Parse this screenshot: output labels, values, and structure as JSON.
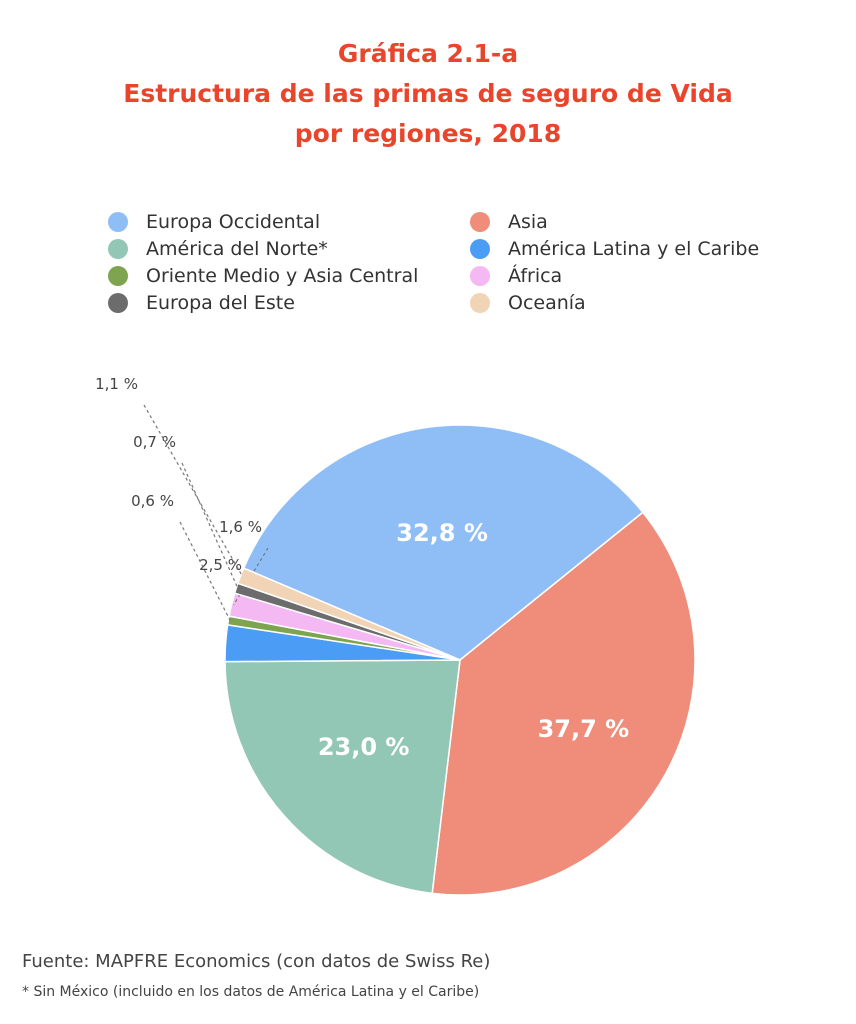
{
  "chart_data": {
    "type": "pie",
    "title_lines": [
      "Gráfica 2.1-a",
      "Estructura de las primas de seguro de Vida",
      "por regiones, 2018"
    ],
    "slices": [
      {
        "name": "Europa Occidental",
        "value": 32.8,
        "label": "32,8 %",
        "color": "#8fbef7"
      },
      {
        "name": "Asia",
        "value": 37.7,
        "label": "37,7 %",
        "color": "#ef8c7a"
      },
      {
        "name": "América del Norte*",
        "value": 23.0,
        "label": "23,0 %",
        "color": "#93c7b5"
      },
      {
        "name": "América Latina y el Caribe",
        "value": 2.5,
        "label": "2,5 %",
        "color": "#4b9cf4"
      },
      {
        "name": "Oriente Medio y Asia Central",
        "value": 0.6,
        "label": "0,6 %",
        "color": "#7ea450"
      },
      {
        "name": "África",
        "value": 1.6,
        "label": "1,6 %",
        "color": "#f4b8f3"
      },
      {
        "name": "Europa del Este",
        "value": 0.7,
        "label": "0,7 %",
        "color": "#6c6c6c"
      },
      {
        "name": "Oceanía",
        "value": 1.1,
        "label": "1,1 %",
        "color": "#f1d4b6"
      }
    ],
    "legend": [
      {
        "label": "Europa Occidental",
        "color": "#8fbef7"
      },
      {
        "label": "Asia",
        "color": "#ef8c7a"
      },
      {
        "label": "América del Norte*",
        "color": "#93c7b5"
      },
      {
        "label": "América Latina y el Caribe",
        "color": "#4b9cf4"
      },
      {
        "label": "Oriente Medio y Asia Central",
        "color": "#7ea450"
      },
      {
        "label": "África",
        "color": "#f4b8f3"
      },
      {
        "label": "Europa del Este",
        "color": "#6c6c6c"
      },
      {
        "label": "Oceanía",
        "color": "#f1d4b6"
      }
    ]
  },
  "source": "Fuente: MAPFRE Economics (con datos de Swiss Re)",
  "footnote": "* Sin México (incluido en los datos de América Latina y el Caribe)"
}
